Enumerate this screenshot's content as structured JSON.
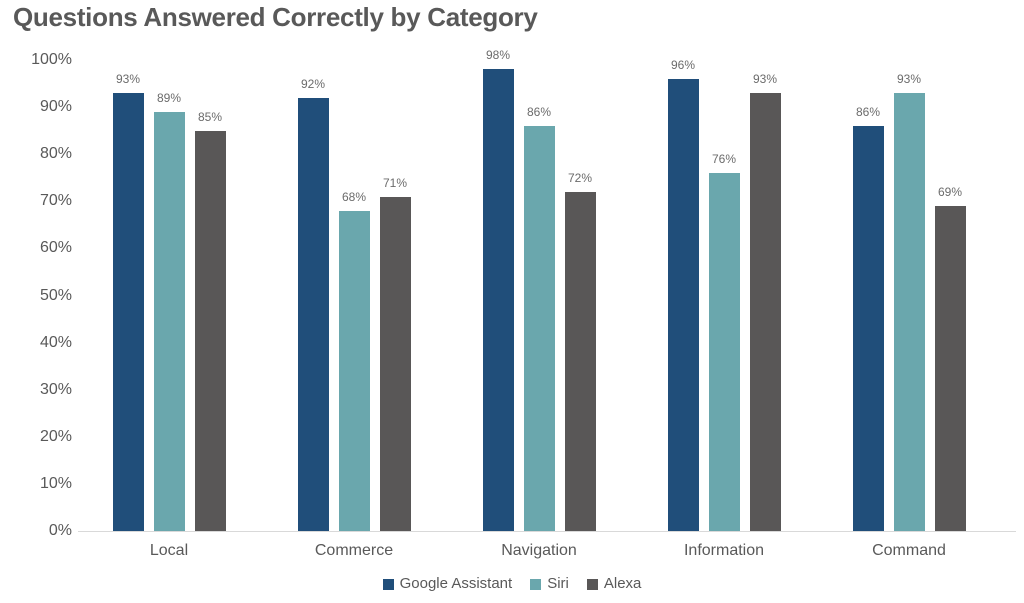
{
  "chart_data": {
    "type": "bar",
    "title": "Questions Answered Correctly by Category",
    "categories": [
      "Local",
      "Commerce",
      "Navigation",
      "Information",
      "Command"
    ],
    "series": [
      {
        "name": "Google Assistant",
        "color": "#204E7A",
        "values": [
          93,
          92,
          98,
          96,
          86
        ]
      },
      {
        "name": "Siri",
        "color": "#6AA7AD",
        "values": [
          89,
          68,
          86,
          76,
          93
        ]
      },
      {
        "name": "Alexa",
        "color": "#595757",
        "values": [
          85,
          71,
          72,
          93,
          69
        ]
      }
    ],
    "value_labels": [
      [
        "93%",
        "92%",
        "98%",
        "96%",
        "86%"
      ],
      [
        "89%",
        "68%",
        "86%",
        "76%",
        "93%"
      ],
      [
        "85%",
        "71%",
        "72%",
        "93%",
        "69%"
      ]
    ],
    "y_ticks": [
      "0%",
      "10%",
      "20%",
      "30%",
      "40%",
      "50%",
      "60%",
      "70%",
      "80%",
      "90%",
      "100%"
    ],
    "ylim": [
      0,
      100
    ],
    "value_suffix": "%",
    "grid": false,
    "legend_position": "bottom",
    "axis_line_color": "#d9d9d9",
    "text_color": "#595959"
  }
}
